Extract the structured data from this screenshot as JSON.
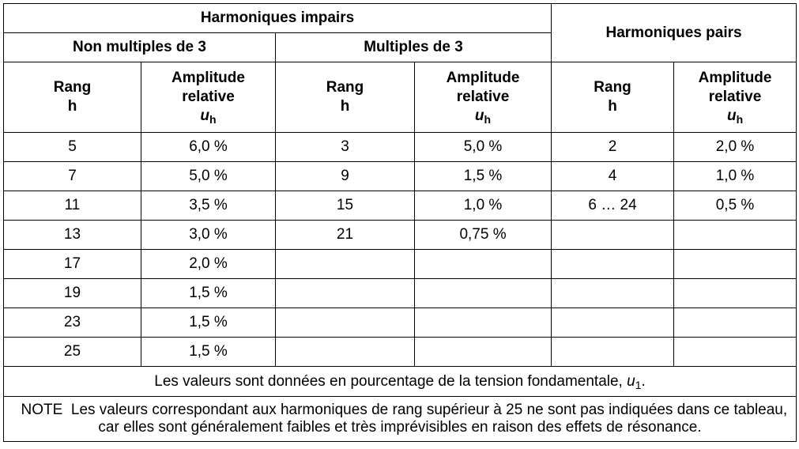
{
  "header": {
    "odd": "Harmoniques impairs",
    "even": "Harmoniques pairs",
    "non_mult3": "Non multiples de 3",
    "mult3": "Multiples de 3",
    "rang": "Rang",
    "h": "h",
    "amp1": "Amplitude",
    "amp2": "relative",
    "u": "u",
    "u_sub": "h"
  },
  "rows": [
    {
      "r1": "5",
      "a1": "6,0 %",
      "r2": "3",
      "a2": "5,0 %",
      "r3": "2",
      "a3": "2,0 %"
    },
    {
      "r1": "7",
      "a1": "5,0 %",
      "r2": "9",
      "a2": "1,5 %",
      "r3": "4",
      "a3": "1,0 %"
    },
    {
      "r1": "11",
      "a1": "3,5 %",
      "r2": "15",
      "a2": "1,0 %",
      "r3": "6 … 24",
      "a3": "0,5 %"
    },
    {
      "r1": "13",
      "a1": "3,0 %",
      "r2": "21",
      "a2": "0,75 %",
      "r3": "",
      "a3": ""
    },
    {
      "r1": "17",
      "a1": "2,0 %",
      "r2": "",
      "a2": "",
      "r3": "",
      "a3": ""
    },
    {
      "r1": "19",
      "a1": "1,5 %",
      "r2": "",
      "a2": "",
      "r3": "",
      "a3": ""
    },
    {
      "r1": "23",
      "a1": "1,5 %",
      "r2": "",
      "a2": "",
      "r3": "",
      "a3": ""
    },
    {
      "r1": "25",
      "a1": "1,5 %",
      "r2": "",
      "a2": "",
      "r3": "",
      "a3": ""
    }
  ],
  "footer": {
    "values_text": "Les valeurs sont données en pourcentage de la tension fondamentale, ",
    "values_u": "u",
    "values_sub": "1",
    "values_end": ".",
    "note_label": "NOTE",
    "note_text": "Les valeurs correspondant aux harmoniques de rang supérieur à 25 ne sont pas indiquées dans ce tableau, car elles sont généralement faibles et très imprévisibles en raison des effets de résonance."
  }
}
